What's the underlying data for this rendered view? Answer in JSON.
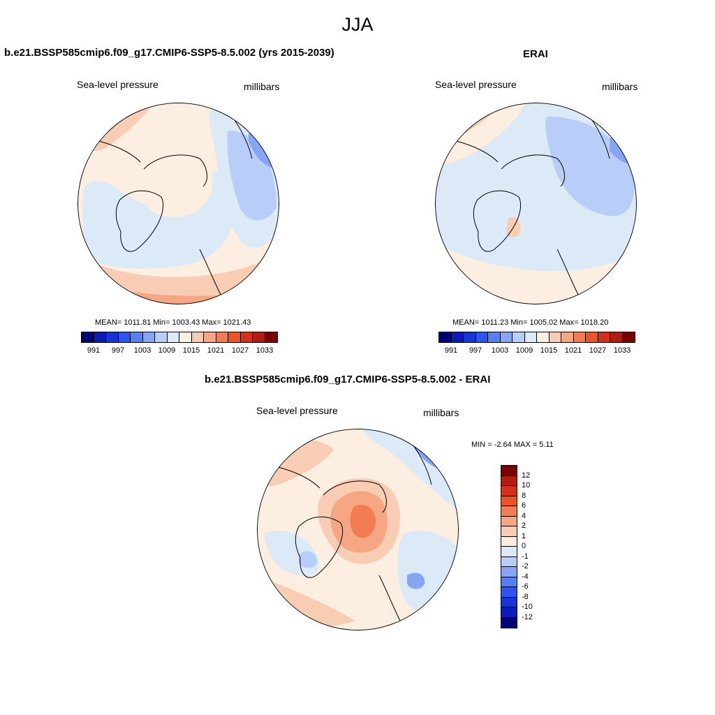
{
  "title": "JJA",
  "panels": {
    "model": {
      "title": "b.e21.BSSP585cmip6.f09_g17.CMIP6-SSP5-8.5.002 (yrs 2015-2039)",
      "variable": "Sea-level pressure",
      "units": "millibars",
      "stats": "MEAN= 1011.81  Min= 1003.43  Max= 1021.43"
    },
    "obs": {
      "title": "ERAI",
      "variable": "Sea-level pressure",
      "units": "millibars",
      "stats": "MEAN= 1011.23  Min= 1005.02  Max= 1018.20"
    },
    "diff": {
      "title": "b.e21.BSSP585cmip6.f09_g17.CMIP6-SSP5-8.5.002 - ERAI",
      "variable": "Sea-level pressure",
      "units": "millibars",
      "stats": "MIN =  -2.64 MAX =   5.11"
    }
  },
  "colorbars": {
    "abs_colors": [
      "#00007a",
      "#0b1ab8",
      "#1535d6",
      "#2b55ee",
      "#5580f5",
      "#86a6f5",
      "#b8cdf7",
      "#dceaf8",
      "#fdeee2",
      "#f8cdb4",
      "#f5a683",
      "#f37c53",
      "#ee5227",
      "#d6301a",
      "#b51c10",
      "#7a0000"
    ],
    "abs_ticks": [
      "991",
      "997",
      "1003",
      "1009",
      "1015",
      "1021",
      "1027",
      "1033"
    ],
    "diff_colors": [
      "#7a0000",
      "#b51c10",
      "#d6301a",
      "#ee5227",
      "#f37c53",
      "#f5a683",
      "#f8cdb4",
      "#fdeee2",
      "#dceaf8",
      "#b8cdf7",
      "#86a6f5",
      "#5580f5",
      "#2b55ee",
      "#1535d6",
      "#0b1ab8",
      "#00007a"
    ],
    "diff_ticks": [
      "12",
      "10",
      "8",
      "6",
      "4",
      "2",
      "1",
      "0",
      "-1",
      "-2",
      "-4",
      "-6",
      "-8",
      "-10",
      "-12"
    ]
  },
  "map_colors": {
    "pos1": "#fdeee2",
    "pos2": "#f8cdb4",
    "pos3": "#f5a683",
    "pos4": "#f37c53",
    "neg1": "#dceaf8",
    "neg2": "#b8cdf7",
    "neg3": "#86a6f5"
  }
}
